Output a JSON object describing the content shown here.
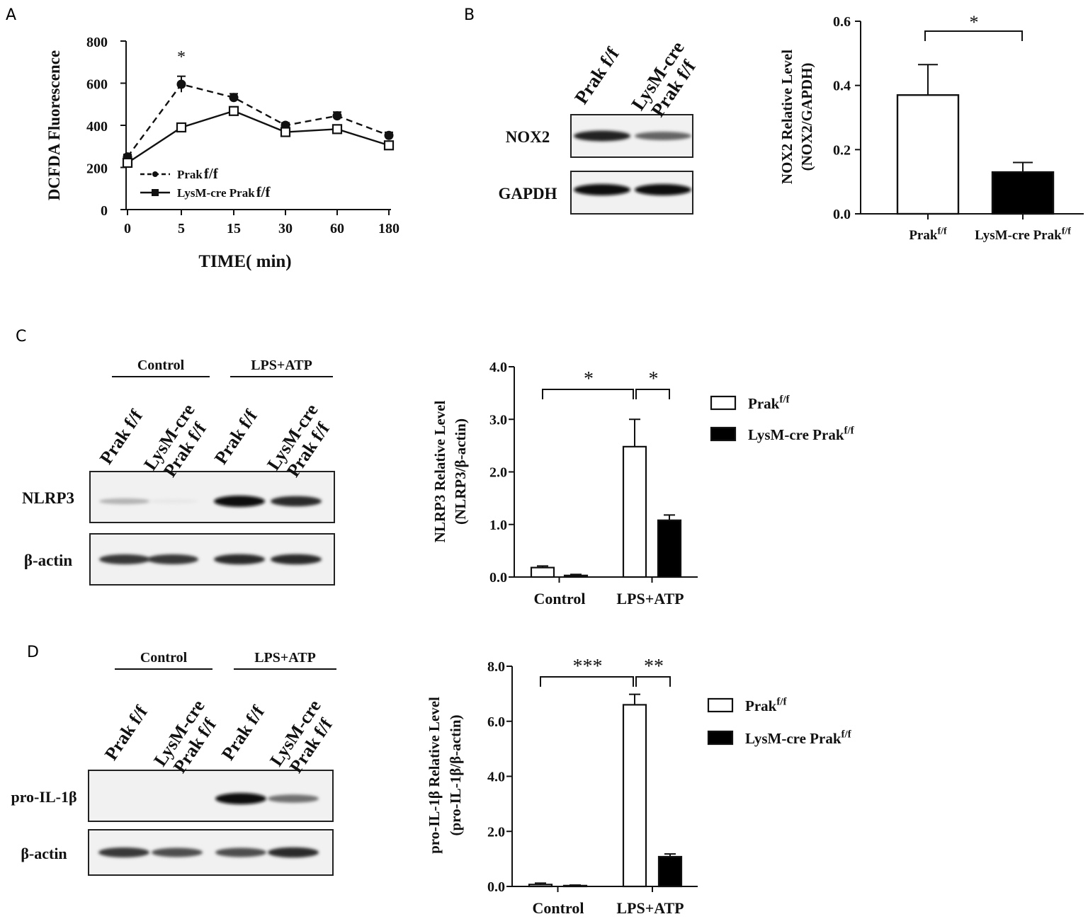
{
  "panels": {
    "A": {
      "letter": "A",
      "chart_data": {
        "type": "line",
        "x": [
          "0",
          "5",
          "15",
          "30",
          "60",
          "180"
        ],
        "series": [
          {
            "name": "Prak",
            "name_sup": "f/f",
            "style": "dashed",
            "marker": "filled-circle",
            "values": [
              250,
              595,
              532,
              400,
              445,
              352
            ],
            "errors": [
              12,
              38,
              18,
              12,
              18,
              15
            ]
          },
          {
            "name": "LysM-cre Prak",
            "name_sup": "f/f",
            "style": "solid",
            "marker": "open-square",
            "values": [
              222,
              390,
              468,
              368,
              382,
              305
            ],
            "errors": [
              10,
              10,
              18,
              12,
              10,
              12
            ]
          }
        ],
        "ylabel": "DCFDA Fluorescence",
        "xlabel": "TIME( min)",
        "yticks": [
          "0",
          "200",
          "400",
          "600",
          "800"
        ],
        "ylim": [
          0,
          800
        ],
        "annotations": [
          {
            "text": "*",
            "at_x": "5"
          }
        ],
        "legend_position": "bottom-left"
      }
    },
    "B": {
      "letter": "B",
      "blot": {
        "lanes": [
          "Prak f/f",
          "LysM-cre\nPrak f/f"
        ],
        "rows": [
          {
            "label": "NOX2",
            "intensity": [
              0.9,
              0.6
            ]
          },
          {
            "label": "GAPDH",
            "intensity": [
              1.0,
              1.0
            ]
          }
        ]
      },
      "chart_data": {
        "type": "bar",
        "categories": [
          "Prak",
          "LysM-cre Prak"
        ],
        "category_sup": "f/f",
        "values": [
          0.37,
          0.13
        ],
        "errors": [
          0.095,
          0.03
        ],
        "fills": [
          "#ffffff",
          "#000000"
        ],
        "ylabel_line1": "NOX2 Relative Level",
        "ylabel_line2": "(NOX2/GAPDH)",
        "yticks": [
          "0.0",
          "0.2",
          "0.4",
          "0.6"
        ],
        "ylim": [
          0,
          0.6
        ],
        "significance": [
          {
            "text": "*",
            "from": 0,
            "to": 1
          }
        ]
      }
    },
    "C": {
      "letter": "C",
      "blot": {
        "groups": [
          "Control",
          "LPS+ATP"
        ],
        "lanes": [
          "Prak f/f",
          "LysM-cre\nPrak f/f",
          "Prak f/f",
          "LysM-cre\nPrak f/f"
        ],
        "rows": [
          {
            "label": "NLRP3",
            "intensity": [
              0.25,
              0.02,
              1.0,
              0.85
            ]
          },
          {
            "label": "β-actin",
            "intensity": [
              0.8,
              0.8,
              0.85,
              0.85
            ]
          }
        ]
      },
      "chart_data": {
        "type": "bar",
        "categories": [
          "Control",
          "LPS+ATP"
        ],
        "series": [
          {
            "name": "Prak",
            "name_sup": "f/f",
            "fill": "#ffffff",
            "values": [
              0.18,
              2.48
            ],
            "errors": [
              0.03,
              0.52
            ]
          },
          {
            "name": "LysM-cre Prak",
            "name_sup": "f/f",
            "fill": "#000000",
            "values": [
              0.03,
              1.08
            ],
            "errors": [
              0.02,
              0.1
            ]
          }
        ],
        "ylabel_line1": "NLRP3 Relative Level",
        "ylabel_line2": "(NLRP3/β-actin)",
        "yticks": [
          "0.0",
          "1.0",
          "2.0",
          "3.0",
          "4.0"
        ],
        "ylim": [
          0,
          4.0
        ],
        "significance": [
          "*",
          "*"
        ],
        "legend_position": "right"
      }
    },
    "D": {
      "letter": "D",
      "blot": {
        "groups": [
          "Control",
          "LPS+ATP"
        ],
        "lanes": [
          "Prak f/f",
          "LysM-cre\nPrak f/f",
          "Prak f/f",
          "LysM-cre\nPrak f/f"
        ],
        "rows": [
          {
            "label": "pro-IL-1β",
            "intensity": [
              0.0,
              0.0,
              1.0,
              0.55
            ]
          },
          {
            "label": "β-actin",
            "intensity": [
              0.8,
              0.7,
              0.7,
              0.85
            ]
          }
        ]
      },
      "chart_data": {
        "type": "bar",
        "categories": [
          "Control",
          "LPS+ATP"
        ],
        "series": [
          {
            "name": "Prak",
            "name_sup": "f/f",
            "fill": "#ffffff",
            "values": [
              0.07,
              6.6
            ],
            "errors": [
              0.05,
              0.38
            ]
          },
          {
            "name": "LysM-cre Prak",
            "name_sup": "f/f",
            "fill": "#000000",
            "values": [
              0.03,
              1.08
            ],
            "errors": [
              0.02,
              0.1
            ]
          }
        ],
        "ylabel_line1": "pro-IL-1β Relative Level",
        "ylabel_line2": "(pro-IL-1β/β-actin)",
        "yticks": [
          "0.0",
          "2.0",
          "4.0",
          "6.0",
          "8.0"
        ],
        "ylim": [
          0,
          8.0
        ],
        "significance": [
          "***",
          "**"
        ],
        "legend_position": "right"
      }
    }
  }
}
